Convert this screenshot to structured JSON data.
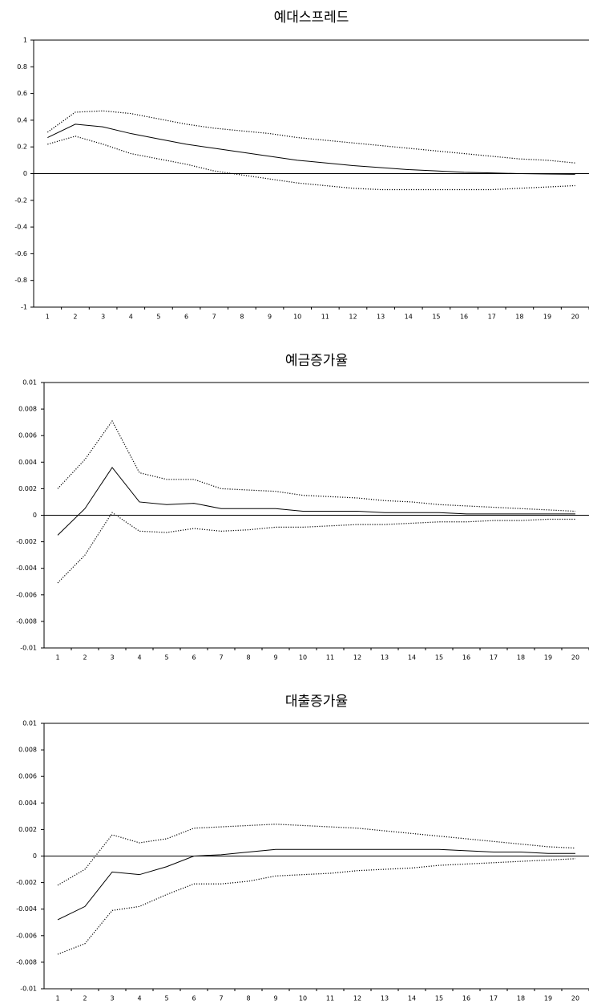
{
  "chart_data": [
    {
      "type": "line",
      "title": "예대스프레드",
      "categories": [
        1,
        2,
        3,
        4,
        5,
        6,
        7,
        8,
        9,
        10,
        11,
        12,
        13,
        14,
        15,
        16,
        17,
        18,
        19,
        20
      ],
      "ylim": [
        -1,
        1
      ],
      "yticks": [
        -1,
        -0.8,
        -0.6,
        -0.4,
        -0.2,
        0,
        0.2,
        0.4,
        0.6,
        0.8,
        1
      ],
      "zero_line": true,
      "series": [
        {
          "color": "#000000",
          "style": "dotted",
          "values": [
            0.22,
            0.28,
            0.22,
            0.15,
            0.11,
            0.07,
            0.02,
            -0.01,
            -0.04,
            -0.07,
            -0.09,
            -0.11,
            -0.12,
            -0.12,
            -0.12,
            -0.12,
            -0.12,
            -0.11,
            -0.1,
            -0.09
          ]
        },
        {
          "color": "#000000",
          "style": "solid",
          "values": [
            0.27,
            0.37,
            0.35,
            0.3,
            0.26,
            0.22,
            0.19,
            0.16,
            0.13,
            0.1,
            0.08,
            0.06,
            0.045,
            0.03,
            0.02,
            0.01,
            0.005,
            0,
            -0.003,
            -0.005
          ]
        },
        {
          "color": "#000000",
          "style": "dotted",
          "values": [
            0.31,
            0.46,
            0.47,
            0.45,
            0.41,
            0.37,
            0.34,
            0.32,
            0.3,
            0.27,
            0.25,
            0.23,
            0.21,
            0.19,
            0.17,
            0.15,
            0.13,
            0.11,
            0.1,
            0.08
          ]
        }
      ]
    },
    {
      "type": "line",
      "title": "예금증가율",
      "categories": [
        1,
        2,
        3,
        4,
        5,
        6,
        7,
        8,
        9,
        10,
        11,
        12,
        13,
        14,
        15,
        16,
        17,
        18,
        19,
        20
      ],
      "ylim": [
        -0.01,
        0.01
      ],
      "yticks": [
        -0.01,
        -0.008,
        -0.006,
        -0.004,
        -0.002,
        0,
        0.002,
        0.004,
        0.006,
        0.008,
        0.01
      ],
      "zero_line": true,
      "series": [
        {
          "color": "#000000",
          "style": "dotted",
          "values": [
            -0.0051,
            -0.003,
            0.0002,
            -0.0012,
            -0.0013,
            -0.001,
            -0.0012,
            -0.0011,
            -0.0009,
            -0.0009,
            -0.0008,
            -0.0007,
            -0.0007,
            -0.0006,
            -0.0005,
            -0.0005,
            -0.0004,
            -0.0004,
            -0.0003,
            -0.0003
          ]
        },
        {
          "color": "#000000",
          "style": "solid",
          "values": [
            -0.0015,
            0.0005,
            0.0036,
            0.001,
            0.0008,
            0.0009,
            0.0005,
            0.0005,
            0.0005,
            0.0003,
            0.0003,
            0.0003,
            0.0002,
            0.0002,
            0.0002,
            0.0001,
            0.0001,
            0.0001,
            0.0001,
            0.0001
          ]
        },
        {
          "color": "#000000",
          "style": "dotted",
          "values": [
            0.002,
            0.0042,
            0.0071,
            0.0032,
            0.0027,
            0.0027,
            0.002,
            0.0019,
            0.0018,
            0.0015,
            0.0014,
            0.0013,
            0.0011,
            0.001,
            0.0008,
            0.0007,
            0.0006,
            0.0005,
            0.0004,
            0.0003
          ]
        }
      ]
    },
    {
      "type": "line",
      "title": "대출증가율",
      "categories": [
        1,
        2,
        3,
        4,
        5,
        6,
        7,
        8,
        9,
        10,
        11,
        12,
        13,
        14,
        15,
        16,
        17,
        18,
        19,
        20
      ],
      "ylim": [
        -0.01,
        0.01
      ],
      "yticks": [
        -0.01,
        -0.008,
        -0.006,
        -0.004,
        -0.002,
        0,
        0.002,
        0.004,
        0.006,
        0.008,
        0.01
      ],
      "zero_line": true,
      "series": [
        {
          "color": "#000000",
          "style": "dotted",
          "values": [
            -0.0074,
            -0.0066,
            -0.0041,
            -0.0038,
            -0.0029,
            -0.0021,
            -0.0021,
            -0.0019,
            -0.0015,
            -0.0014,
            -0.0013,
            -0.0011,
            -0.001,
            -0.0009,
            -0.0007,
            -0.0006,
            -0.0005,
            -0.0004,
            -0.0003,
            -0.0002
          ]
        },
        {
          "color": "#000000",
          "style": "solid",
          "values": [
            -0.0048,
            -0.0038,
            -0.0012,
            -0.0014,
            -0.0008,
            0,
            0.0001,
            0.0003,
            0.0005,
            0.0005,
            0.0005,
            0.0005,
            0.0005,
            0.0005,
            0.0005,
            0.0004,
            0.0003,
            0.0003,
            0.0002,
            0.0002
          ]
        },
        {
          "color": "#000000",
          "style": "dotted",
          "values": [
            -0.0022,
            -0.001,
            0.0016,
            0.001,
            0.0013,
            0.0021,
            0.0022,
            0.0023,
            0.0024,
            0.0023,
            0.0022,
            0.0021,
            0.0019,
            0.0017,
            0.0015,
            0.0013,
            0.0011,
            0.0009,
            0.0007,
            0.0006
          ]
        }
      ]
    }
  ]
}
